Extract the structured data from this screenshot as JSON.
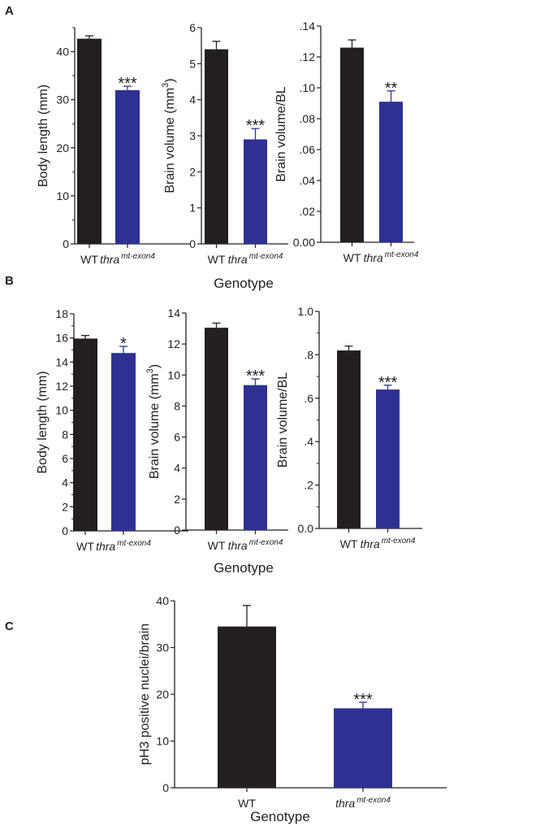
{
  "colors": {
    "wt": "#231f20",
    "mutant": "#2e3192",
    "axis": "#222222"
  },
  "panels": [
    {
      "label": "A",
      "xlabel": "Genotype"
    },
    {
      "label": "B",
      "xlabel": "Genotype"
    },
    {
      "label": "C",
      "xlabel": "Genotype"
    }
  ],
  "categories": [
    {
      "base": "WT",
      "sup": ""
    },
    {
      "base": "thra",
      "sup": "mt-exon4"
    }
  ],
  "chart_data": [
    {
      "panel": "A",
      "type": "bar",
      "ylabel": "Body length (mm)",
      "ylabel_sup": "",
      "ylabel_suffix": "",
      "ylim": [
        0,
        45
      ],
      "ticks": [
        0,
        10,
        20,
        30,
        40
      ],
      "tick_labels": [
        "0",
        "10",
        "20",
        "30",
        "40"
      ],
      "minor_step": 5,
      "values": [
        42.7,
        32.0
      ],
      "errors": [
        0.6,
        0.8
      ],
      "significance": [
        "",
        "***"
      ]
    },
    {
      "panel": "A",
      "type": "bar",
      "ylabel": "Brain volume (mm",
      "ylabel_sup": "3",
      "ylabel_suffix": ")",
      "ylim": [
        0,
        6
      ],
      "ticks": [
        0,
        1,
        2,
        3,
        4,
        5,
        6
      ],
      "tick_labels": [
        "0",
        "1",
        "2",
        "3",
        "4",
        "5",
        "6"
      ],
      "minor_step": 0,
      "values": [
        5.4,
        2.9
      ],
      "errors": [
        0.22,
        0.3
      ],
      "significance": [
        "",
        "***"
      ]
    },
    {
      "panel": "A",
      "type": "bar",
      "ylabel": "Brain volume/BL",
      "ylabel_sup": "",
      "ylabel_suffix": "",
      "ylim": [
        0,
        0.14
      ],
      "ticks": [
        0,
        0.02,
        0.04,
        0.06,
        0.08,
        0.1,
        0.12,
        0.14
      ],
      "tick_labels": [
        "0.00",
        ".02",
        ".04",
        ".06",
        ".08",
        ".10",
        ".12",
        ".14"
      ],
      "minor_step": 0,
      "values": [
        0.126,
        0.091
      ],
      "errors": [
        0.005,
        0.007
      ],
      "significance": [
        "",
        "**"
      ]
    },
    {
      "panel": "B",
      "type": "bar",
      "ylabel": "Body length (mm)",
      "ylabel_sup": "",
      "ylabel_suffix": "",
      "ylim": [
        0,
        18
      ],
      "ticks": [
        0,
        2,
        4,
        6,
        8,
        10,
        12,
        14,
        16,
        18
      ],
      "tick_labels": [
        "0",
        "2",
        "4",
        "6",
        "8",
        "10",
        "12",
        "14",
        "16",
        "18"
      ],
      "minor_step": 1,
      "values": [
        15.95,
        14.75
      ],
      "errors": [
        0.25,
        0.55
      ],
      "significance": [
        "",
        "*"
      ]
    },
    {
      "panel": "B",
      "type": "bar",
      "ylabel": "Brain volume (mm",
      "ylabel_sup": "3",
      "ylabel_suffix": ")",
      "ylim": [
        0,
        14
      ],
      "ticks": [
        0,
        2,
        4,
        6,
        8,
        10,
        12,
        14
      ],
      "tick_labels": [
        "0",
        "2",
        "4",
        "6",
        "8",
        "10",
        "12",
        "14"
      ],
      "minor_step": 0,
      "values": [
        13.05,
        9.35
      ],
      "errors": [
        0.3,
        0.4
      ],
      "significance": [
        "",
        "***"
      ]
    },
    {
      "panel": "B",
      "type": "bar",
      "ylabel": "Brain volume/BL",
      "ylabel_sup": "",
      "ylabel_suffix": "",
      "ylim": [
        0,
        1.0
      ],
      "ticks": [
        0,
        0.2,
        0.4,
        0.6,
        0.8,
        1.0
      ],
      "tick_labels": [
        "0.0",
        ".2",
        ".4",
        ".6",
        ".8",
        "1.0"
      ],
      "minor_step": 0.1,
      "values": [
        0.82,
        0.64
      ],
      "errors": [
        0.02,
        0.02
      ],
      "significance": [
        "",
        "***"
      ]
    },
    {
      "panel": "C",
      "type": "bar",
      "ylabel": "pH3 positive nuclei/brain",
      "ylabel_sup": "",
      "ylabel_suffix": "",
      "ylim": [
        0,
        40
      ],
      "ticks": [
        0,
        10,
        20,
        30,
        40
      ],
      "tick_labels": [
        "0",
        "10",
        "20",
        "30",
        "40"
      ],
      "minor_step": 0,
      "values": [
        34.5,
        17.0
      ],
      "errors": [
        4.5,
        1.3
      ],
      "significance": [
        "",
        "***"
      ]
    }
  ]
}
